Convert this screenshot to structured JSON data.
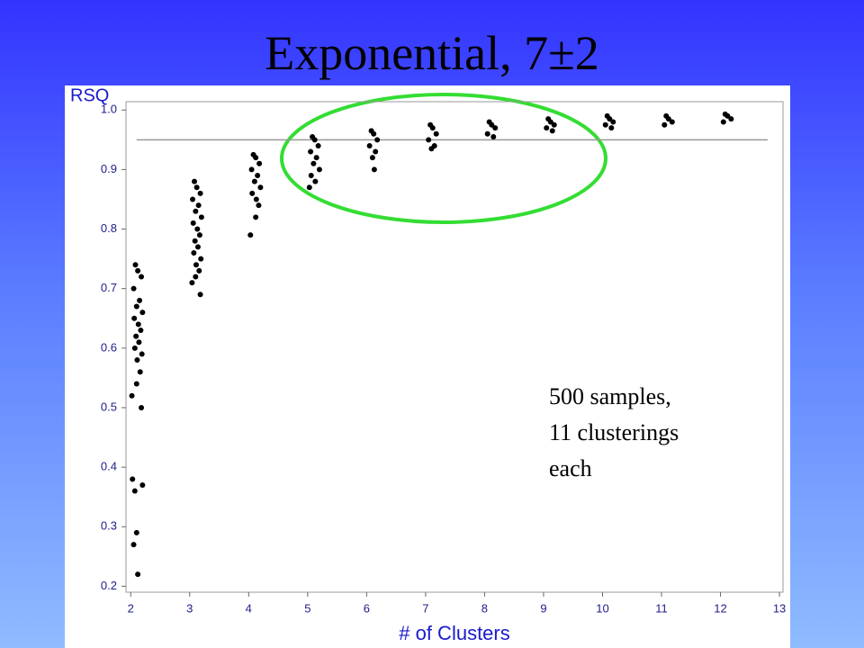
{
  "chart_data": {
    "type": "scatter",
    "title": "Exponential, 7±2",
    "x_label": "# of Clusters",
    "y_label": "RSQ",
    "annotation": [
      "500 samples,",
      "11 clusterings",
      "each"
    ],
    "color": "#000000",
    "xlim": [
      1.92,
      13.06
    ],
    "ylim": [
      0.19,
      1.014
    ],
    "xticks": [
      2,
      3,
      4,
      5,
      6,
      7,
      8,
      9,
      10,
      11,
      12,
      13
    ],
    "yticks": [
      0.2,
      0.3,
      0.4,
      0.5,
      0.6,
      0.7,
      0.8,
      0.9,
      {
        "value": 1,
        "label": "1.0"
      }
    ],
    "reference_line": {
      "y": 0.95,
      "x": [
        2.1,
        12.8
      ],
      "color": "#999999"
    },
    "x": [
      2.08,
      2.12,
      2.18,
      2.05,
      2.15,
      2.1,
      2.2,
      2.06,
      2.13,
      2.17,
      2.09,
      2.14,
      2.07,
      2.19,
      2.11,
      2.16,
      2.1,
      2.02,
      2.18,
      2.03,
      2.2,
      2.07,
      2.1,
      2.05,
      2.12,
      3.08,
      3.12,
      3.18,
      3.05,
      3.15,
      3.1,
      3.2,
      3.06,
      3.13,
      3.17,
      3.09,
      3.14,
      3.07,
      3.19,
      3.11,
      3.16,
      3.1,
      3.04,
      3.18,
      4.08,
      4.12,
      4.18,
      4.05,
      4.15,
      4.1,
      4.2,
      4.06,
      4.13,
      4.17,
      4.12,
      4.03,
      5.08,
      5.12,
      5.18,
      5.05,
      5.15,
      5.1,
      5.2,
      5.06,
      5.13,
      5.03,
      6.08,
      6.12,
      6.18,
      6.05,
      6.15,
      6.1,
      6.13,
      7.08,
      7.12,
      7.18,
      7.05,
      7.15,
      7.1,
      8.08,
      8.12,
      8.18,
      8.05,
      8.15,
      9.08,
      9.12,
      9.18,
      9.05,
      9.15,
      10.08,
      10.12,
      10.18,
      10.05,
      10.15,
      11.08,
      11.12,
      11.18,
      11.05,
      12.08,
      12.12,
      12.18,
      12.05
    ],
    "values": [
      0.74,
      0.73,
      0.72,
      0.7,
      0.68,
      0.67,
      0.66,
      0.65,
      0.64,
      0.63,
      0.62,
      0.61,
      0.6,
      0.59,
      0.58,
      0.56,
      0.54,
      0.52,
      0.5,
      0.38,
      0.37,
      0.36,
      0.29,
      0.27,
      0.22,
      0.88,
      0.87,
      0.86,
      0.85,
      0.84,
      0.83,
      0.82,
      0.81,
      0.8,
      0.79,
      0.78,
      0.77,
      0.76,
      0.75,
      0.74,
      0.73,
      0.72,
      0.71,
      0.69,
      0.925,
      0.92,
      0.91,
      0.9,
      0.89,
      0.88,
      0.87,
      0.86,
      0.85,
      0.84,
      0.82,
      0.79,
      0.955,
      0.95,
      0.94,
      0.93,
      0.92,
      0.91,
      0.9,
      0.89,
      0.88,
      0.87,
      0.965,
      0.96,
      0.95,
      0.94,
      0.93,
      0.92,
      0.9,
      0.975,
      0.97,
      0.96,
      0.95,
      0.94,
      0.935,
      0.98,
      0.975,
      0.97,
      0.96,
      0.955,
      0.985,
      0.98,
      0.975,
      0.97,
      0.965,
      0.99,
      0.985,
      0.98,
      0.975,
      0.97,
      0.99,
      0.985,
      0.98,
      0.975,
      0.993,
      0.99,
      0.985,
      0.98
    ]
  }
}
